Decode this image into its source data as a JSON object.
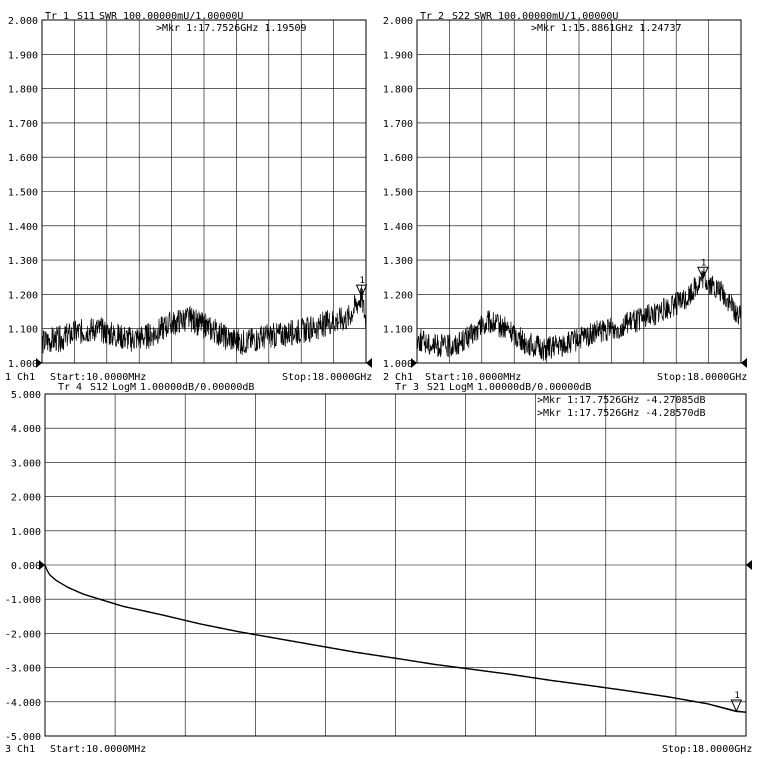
{
  "channels": [
    {
      "trace_label": "Tr 1",
      "parameter": "S11",
      "format": "SWR",
      "scale": "100.00000mU/1.00000U",
      "markers": [
        {
          "text": ">Mkr 1:17.7526GHz 1.19509"
        }
      ],
      "marker_flag": "1",
      "channel_label": "1 Ch1",
      "start": "Start:10.0000MHz",
      "stop": "Stop:18.0000GHz",
      "y_ticks": [
        "2.000",
        "1.900",
        "1.800",
        "1.700",
        "1.600",
        "1.500",
        "1.400",
        "1.300",
        "1.200",
        "1.100",
        "1.000"
      ]
    },
    {
      "trace_label": "Tr 2",
      "parameter": "S22",
      "format": "SWR",
      "scale": "100.00000mU/1.00000U",
      "markers": [
        {
          "text": ">Mkr 1:15.8861GHz 1.24737"
        }
      ],
      "marker_flag": "1",
      "channel_label": "2 Ch1",
      "start": "Start:10.0000MHz",
      "stop": "Stop:18.0000GHz",
      "y_ticks": [
        "2.000",
        "1.900",
        "1.800",
        "1.700",
        "1.600",
        "1.500",
        "1.400",
        "1.300",
        "1.200",
        "1.100",
        "1.000"
      ]
    },
    {
      "trace_label": "Tr 3",
      "parameter": "S21",
      "format": "LogM",
      "scale": "1.00000dB/0.00000dB",
      "trace_label_2": "Tr 4",
      "parameter_2": "S12",
      "format_2": "LogM",
      "scale_2": "1.00000dB/0.00000dB",
      "markers": [
        {
          "text": ">Mkr 1:17.7526GHz -4.27085dB"
        },
        {
          "text": ">Mkr 1:17.7526GHz -4.28570dB"
        }
      ],
      "marker_flag": "1",
      "channel_label": "3 Ch1",
      "start": "Start:10.0000MHz",
      "stop": "Stop:18.0000GHz",
      "y_ticks": [
        "5.000",
        "4.000",
        "3.000",
        "2.000",
        "1.000",
        "0.000",
        "-1.000",
        "-2.000",
        "-3.000",
        "-4.000",
        "-5.000"
      ]
    }
  ],
  "chart_data": [
    {
      "type": "line",
      "series": [
        {
          "name": "S11",
          "x": [
            0.01,
            1,
            2,
            3,
            4,
            5,
            6,
            7,
            8,
            9,
            10,
            11,
            12,
            13,
            14,
            15,
            16,
            17,
            17.7526,
            18
          ],
          "values": [
            1.06,
            1.07,
            1.09,
            1.1,
            1.08,
            1.07,
            1.08,
            1.11,
            1.13,
            1.11,
            1.08,
            1.06,
            1.07,
            1.08,
            1.09,
            1.1,
            1.12,
            1.13,
            1.195,
            1.12
          ]
        }
      ],
      "xlim": [
        0.01,
        18
      ],
      "ylim": [
        1.0,
        2.0
      ],
      "grid": true
    },
    {
      "type": "line",
      "series": [
        {
          "name": "S22",
          "x": [
            0.01,
            1,
            2,
            3,
            4,
            5,
            6,
            7,
            8,
            9,
            10,
            11,
            12,
            13,
            14,
            15,
            15.8861,
            17,
            18
          ],
          "values": [
            1.07,
            1.05,
            1.05,
            1.08,
            1.12,
            1.1,
            1.06,
            1.04,
            1.05,
            1.07,
            1.09,
            1.1,
            1.12,
            1.14,
            1.16,
            1.19,
            1.247,
            1.2,
            1.13
          ]
        }
      ],
      "xlim": [
        0.01,
        18
      ],
      "ylim": [
        1.0,
        2.0
      ],
      "grid": true
    },
    {
      "type": "line",
      "series": [
        {
          "name": "S21",
          "x": [
            0.01,
            0.1,
            0.3,
            0.6,
            1,
            2,
            3,
            4,
            5,
            6,
            7,
            8,
            9,
            10,
            11,
            12,
            13,
            14,
            15,
            16,
            17,
            17.7526,
            18
          ],
          "values": [
            0.0,
            -0.25,
            -0.45,
            -0.65,
            -0.85,
            -1.2,
            -1.45,
            -1.72,
            -1.95,
            -2.15,
            -2.35,
            -2.55,
            -2.72,
            -2.9,
            -3.05,
            -3.2,
            -3.37,
            -3.52,
            -3.68,
            -3.85,
            -4.05,
            -4.27,
            -4.3
          ]
        },
        {
          "name": "S12",
          "x": [
            0.01,
            0.1,
            0.3,
            0.6,
            1,
            2,
            3,
            4,
            5,
            6,
            7,
            8,
            9,
            10,
            11,
            12,
            13,
            14,
            15,
            16,
            17,
            17.7526,
            18
          ],
          "values": [
            0.0,
            -0.26,
            -0.46,
            -0.66,
            -0.86,
            -1.21,
            -1.46,
            -1.73,
            -1.96,
            -2.16,
            -2.36,
            -2.56,
            -2.73,
            -2.91,
            -3.06,
            -3.21,
            -3.38,
            -3.53,
            -3.69,
            -3.86,
            -4.06,
            -4.286,
            -4.31
          ]
        }
      ],
      "xlim": [
        0.01,
        18
      ],
      "ylim": [
        -5.0,
        5.0
      ],
      "grid": true
    }
  ]
}
